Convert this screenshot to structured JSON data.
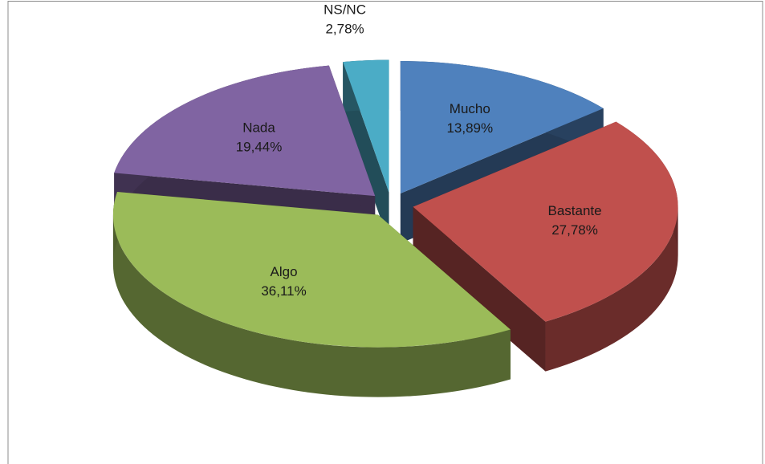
{
  "chart_data": {
    "type": "pie3d",
    "categories": [
      "Mucho",
      "Bastante",
      "Algo",
      "Nada",
      "NS/NC"
    ],
    "values": [
      13.89,
      27.78,
      36.11,
      19.44,
      2.78
    ],
    "value_labels": [
      "13,89%",
      "27,78%",
      "36,11%",
      "19,44%",
      "2,78%"
    ],
    "colors": [
      "#4f81bd",
      "#c0504d",
      "#9bbb59",
      "#8064a2",
      "#4bacc6"
    ]
  }
}
